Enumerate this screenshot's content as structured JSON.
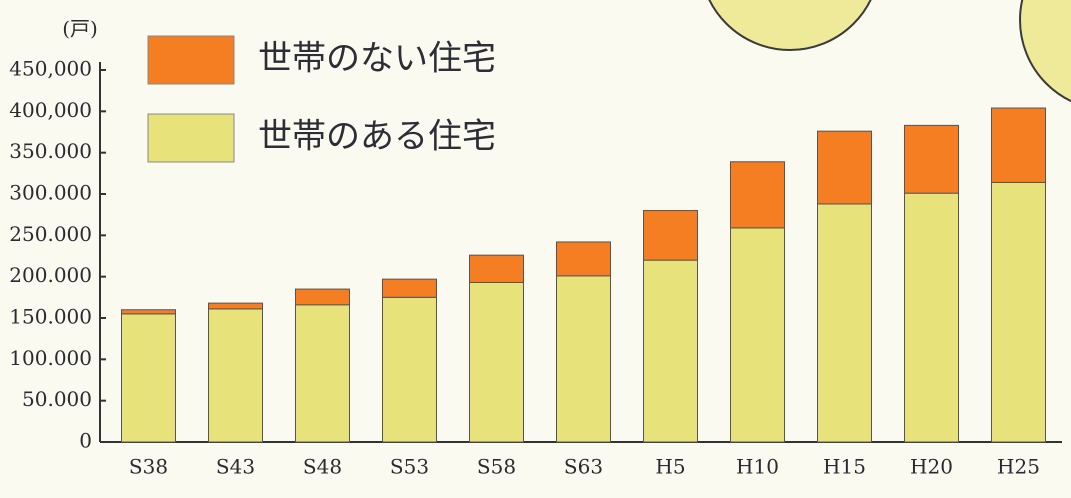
{
  "chart_data": {
    "type": "stacked-bar",
    "y_unit": "(戸)",
    "categories": [
      "S38",
      "S43",
      "S48",
      "S53",
      "S58",
      "S63",
      "H5",
      "H10",
      "H15",
      "H20",
      "H25"
    ],
    "series": [
      {
        "name": "世帯のある住宅",
        "color": "#e8e27a",
        "values": [
          155000,
          161000,
          166000,
          175000,
          193000,
          201000,
          220000,
          259000,
          288000,
          301000,
          314000
        ]
      },
      {
        "name": "世帯のない住宅",
        "color": "#f57d22",
        "values": [
          5000,
          7000,
          19000,
          22000,
          33000,
          41000,
          60000,
          80000,
          88000,
          82000,
          90000
        ]
      }
    ],
    "ylim": [
      0,
      450000
    ],
    "yticks": [
      0,
      {
        "value": 50000,
        "label": "50.000"
      },
      {
        "value": 100000,
        "label": "100.000"
      },
      {
        "value": 150000,
        "label": "150.000"
      },
      {
        "value": 200000,
        "label": "200.000"
      },
      {
        "value": 250000,
        "label": "250.000"
      },
      {
        "value": 300000,
        "label": "300.000"
      },
      {
        "value": 350000,
        "label": "350.000"
      },
      {
        "value": 400000,
        "label": "400,000"
      },
      {
        "value": 450000,
        "label": "450,000"
      }
    ],
    "legend": "top-left"
  }
}
